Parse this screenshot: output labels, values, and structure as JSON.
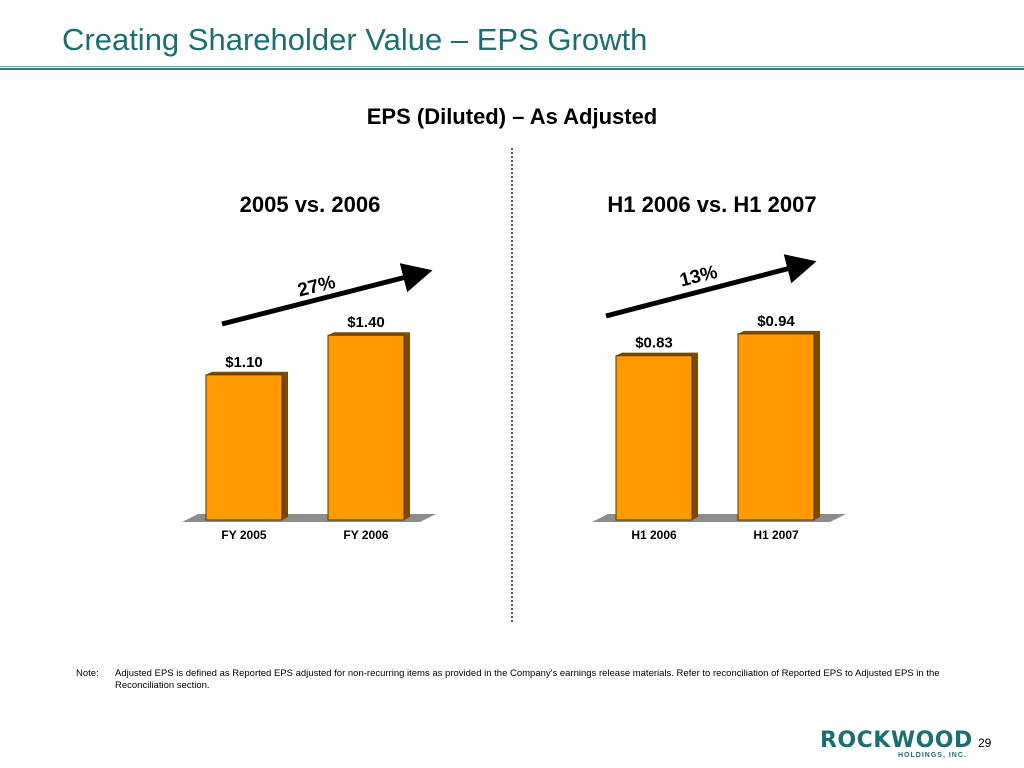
{
  "slide": {
    "title": "Creating Shareholder Value – EPS Growth",
    "page_number": "29"
  },
  "footnote": {
    "label": "Note:",
    "text": "Adjusted EPS is defined as Reported EPS adjusted for non-recurring items as provided in the Company's earnings release materials. Refer to reconciliation of Reported EPS to Adjusted EPS in the Reconciliation section."
  },
  "logo": {
    "word": "ROCKWOOD",
    "sub": "HOLDINGS, INC."
  },
  "colors": {
    "title": "#1b6f73",
    "bar": "#ff9a00",
    "bar_side": "#7a4a00",
    "arrow": "#000000",
    "floor": "#8c8c8c"
  },
  "chart_data": [
    {
      "type": "bar",
      "title": "EPS (Diluted) – As Adjusted",
      "subtitle": "2005 vs. 2006",
      "categories": [
        "FY 2005",
        "FY 2006"
      ],
      "values": [
        1.1,
        1.4
      ],
      "data_labels": [
        "$1.10",
        "$1.40"
      ],
      "growth_label": "27%",
      "ylim": [
        0,
        1.5
      ],
      "xlabel": "",
      "ylabel": "",
      "grid": false
    },
    {
      "type": "bar",
      "title": "EPS (Diluted) – As Adjusted",
      "subtitle": "H1 2006 vs. H1 2007",
      "categories": [
        "H1 2006",
        "H1 2007"
      ],
      "values": [
        0.83,
        0.94
      ],
      "data_labels": [
        "$0.83",
        "$0.94"
      ],
      "growth_label": "13%",
      "ylim": [
        0,
        1.0
      ],
      "xlabel": "",
      "ylabel": "",
      "grid": false
    }
  ]
}
